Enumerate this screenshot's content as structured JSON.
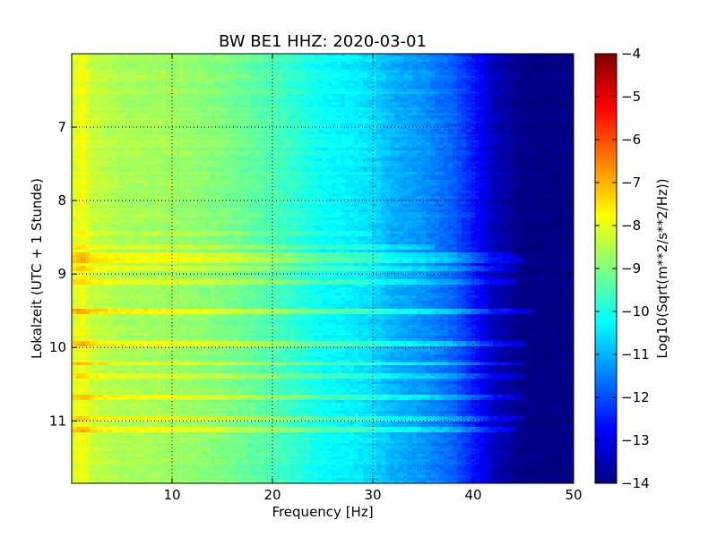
{
  "chart_data": {
    "type": "heatmap",
    "title": "BW BE1 HHZ: 2020-03-01",
    "xlabel": "Frequency [Hz]",
    "ylabel": "Lokalzeit (UTC + 1 Stunde)",
    "xlim": [
      0,
      50
    ],
    "ylim_top_to_bottom": [
      6.0,
      11.85
    ],
    "x_ticks": [
      10,
      20,
      30,
      40,
      50
    ],
    "y_ticks": [
      7,
      8,
      9,
      10,
      11
    ],
    "grid": "dotted",
    "colormap": "jet",
    "colorbar": {
      "label": "Log10(Sqrt(m**2/s**2/Hz))",
      "range": [
        -14,
        -4
      ],
      "ticks": [
        -4,
        -5,
        -6,
        -7,
        -8,
        -9,
        -10,
        -11,
        -12,
        -13,
        -14
      ]
    },
    "background_profile": {
      "frequency_hz": [
        0,
        1,
        2,
        5,
        10,
        15,
        20,
        25,
        28,
        30,
        32,
        35,
        38,
        40,
        42,
        45,
        50
      ],
      "log_psd": [
        -8.2,
        -7.8,
        -8.3,
        -8.6,
        -8.7,
        -9.0,
        -9.5,
        -10.2,
        -10.4,
        -10.6,
        -11.0,
        -11.3,
        -11.8,
        -12.5,
        -13.4,
        -14.0,
        -14.0
      ]
    },
    "bright_events": [
      {
        "time": 8.45,
        "delta": 0.3,
        "fmax": 30
      },
      {
        "time": 8.62,
        "delta": 0.5,
        "fmax": 36
      },
      {
        "time": 8.74,
        "delta": 0.7,
        "fmax": 44
      },
      {
        "time": 8.82,
        "delta": 0.9,
        "fmax": 45
      },
      {
        "time": 8.93,
        "delta": 0.7,
        "fmax": 44
      },
      {
        "time": 9.12,
        "delta": 0.6,
        "fmax": 44
      },
      {
        "time": 9.5,
        "delta": 1.0,
        "fmax": 46
      },
      {
        "time": 9.95,
        "delta": 0.9,
        "fmax": 45
      },
      {
        "time": 10.22,
        "delta": 0.8,
        "fmax": 45
      },
      {
        "time": 10.38,
        "delta": 0.7,
        "fmax": 45
      },
      {
        "time": 10.68,
        "delta": 0.8,
        "fmax": 45
      },
      {
        "time": 10.98,
        "delta": 0.8,
        "fmax": 45
      },
      {
        "time": 11.12,
        "delta": 0.8,
        "fmax": 44
      }
    ]
  }
}
